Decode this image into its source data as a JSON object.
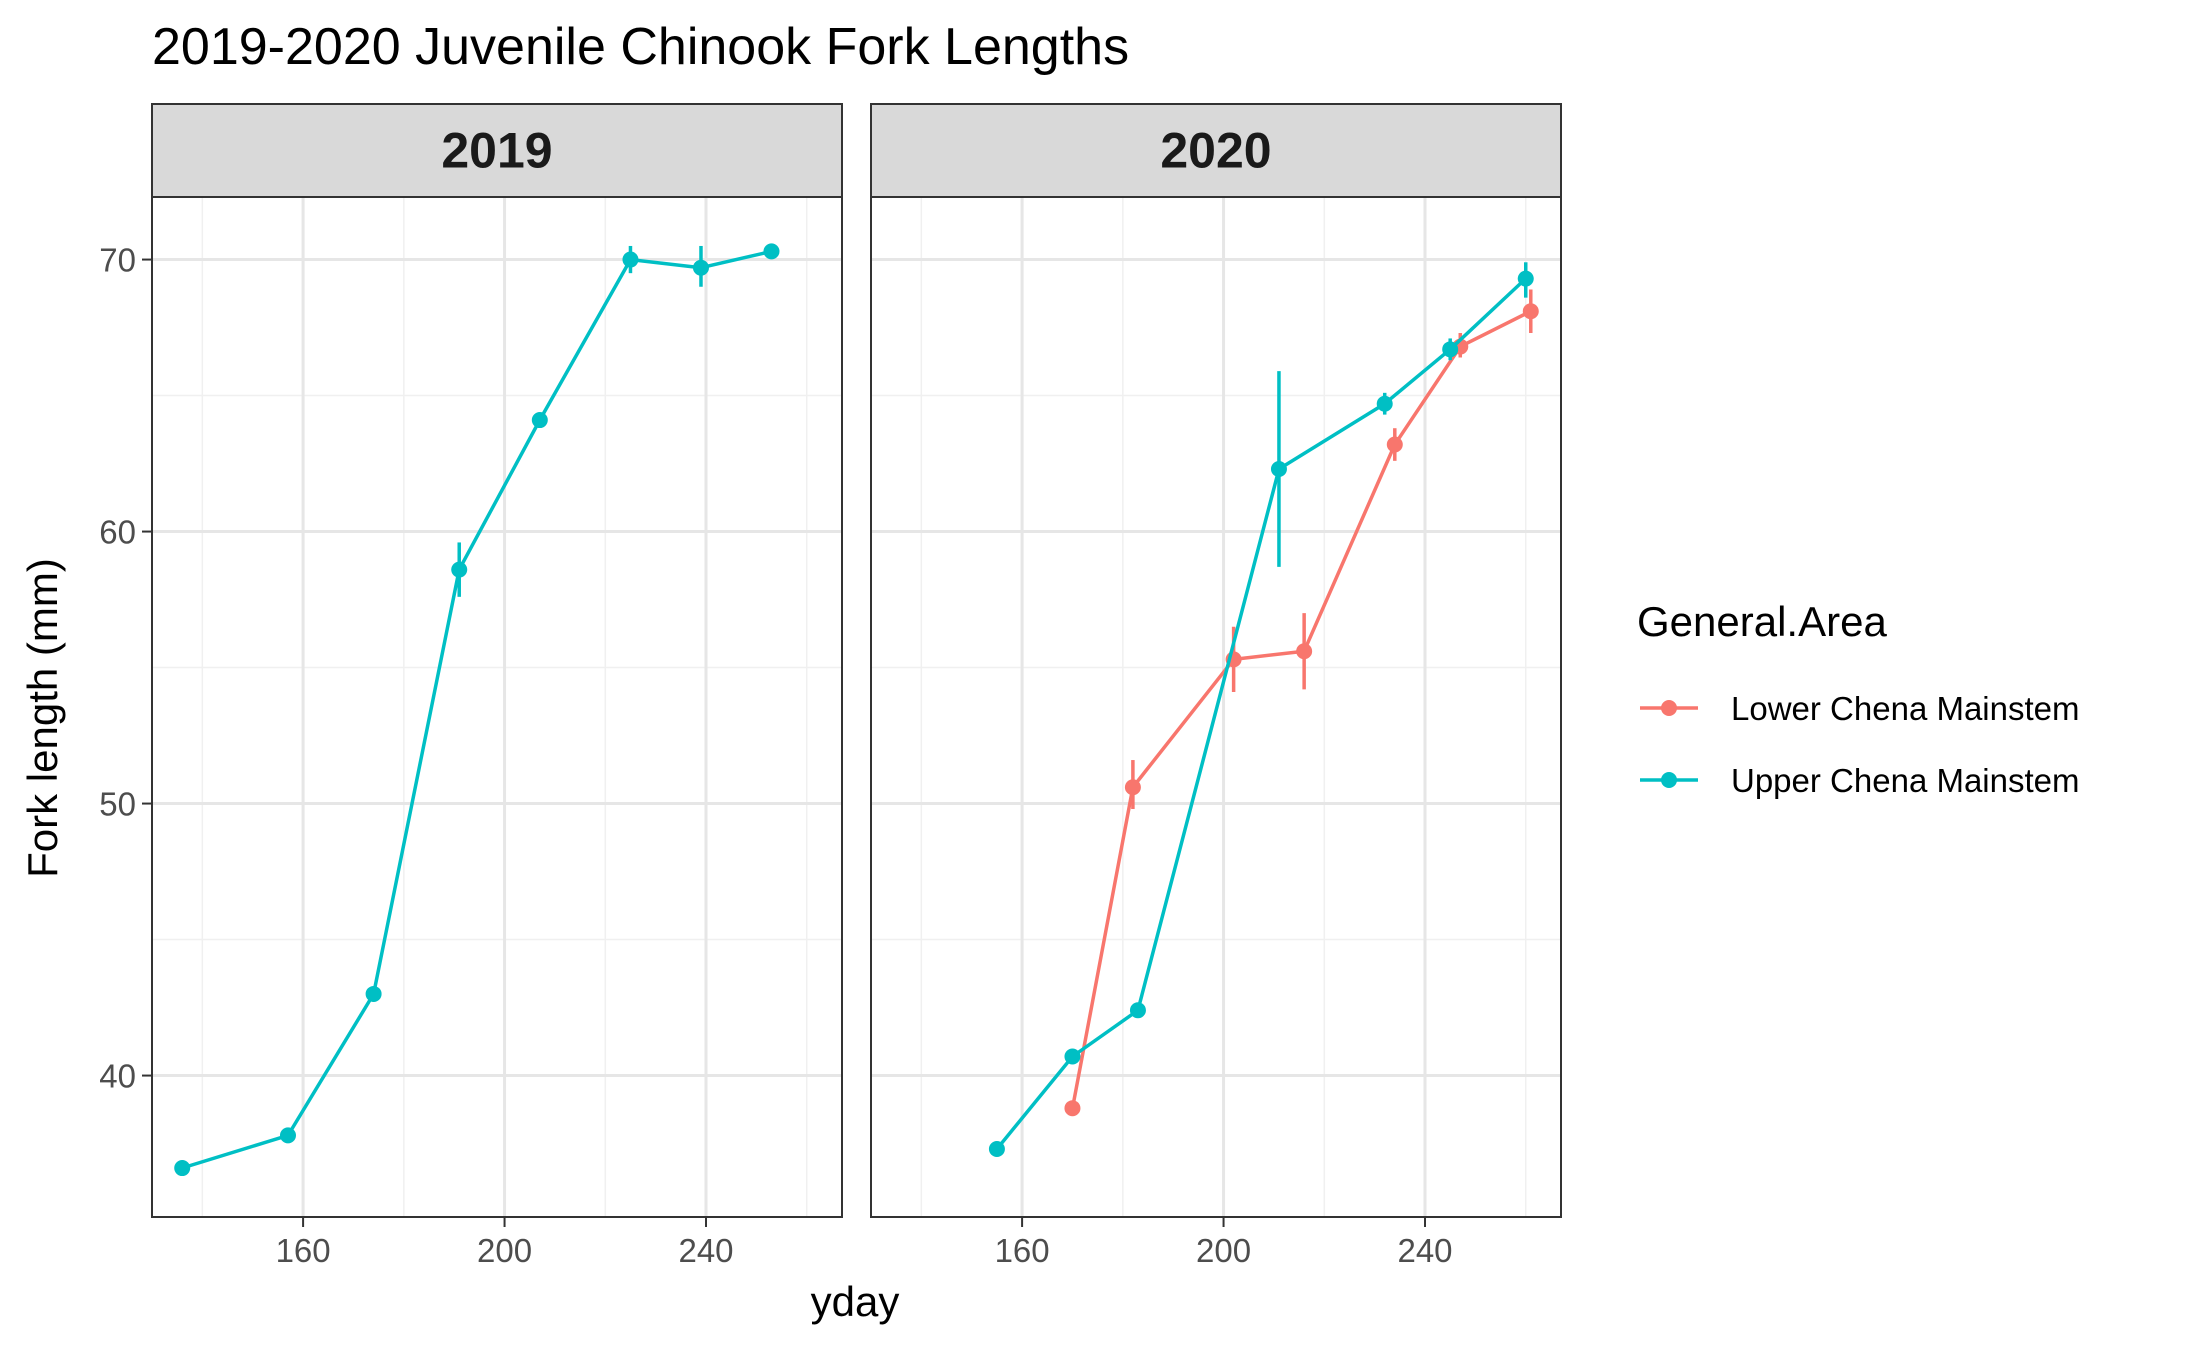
{
  "chart_data": {
    "type": "line",
    "title": "2019-2020 Juvenile Chinook Fork Lengths",
    "xlabel": "yday",
    "ylabel": "Fork length (mm)",
    "xlim": [
      130,
      267
    ],
    "ylim": [
      34.8,
      72.3
    ],
    "x_ticks": [
      160,
      200,
      240
    ],
    "x_minor_ticks": [
      140,
      180,
      220,
      260
    ],
    "y_ticks": [
      40,
      50,
      60,
      70
    ],
    "y_minor_ticks": [
      45,
      55,
      65
    ],
    "x_tick_labels": [
      "160",
      "200",
      "240"
    ],
    "y_tick_labels": [
      "40",
      "50",
      "60",
      "70"
    ],
    "grid": true,
    "legend": {
      "title": "General.Area",
      "placement": "right",
      "entries": [
        "Lower Chena Mainstem",
        "Upper Chena Mainstem"
      ]
    },
    "colors": {
      "Lower Chena Mainstem": "#F8766D",
      "Upper Chena Mainstem": "#00BFC4"
    },
    "panels": [
      {
        "label": "2019",
        "series": [
          {
            "name": "Upper Chena Mainstem",
            "points": [
              {
                "x": 136,
                "y": 36.6
              },
              {
                "x": 157,
                "y": 37.8
              },
              {
                "x": 174,
                "y": 43.0
              },
              {
                "x": 191,
                "y": 58.6,
                "ymin": 57.6,
                "ymax": 59.6
              },
              {
                "x": 207,
                "y": 64.1
              },
              {
                "x": 225,
                "y": 70.0,
                "ymin": 69.5,
                "ymax": 70.5
              },
              {
                "x": 239,
                "y": 69.7,
                "ymin": 69.0,
                "ymax": 70.5
              },
              {
                "x": 253,
                "y": 70.3
              }
            ]
          }
        ]
      },
      {
        "label": "2020",
        "series": [
          {
            "name": "Lower Chena Mainstem",
            "points": [
              {
                "x": 170,
                "y": 38.8
              },
              {
                "x": 182,
                "y": 50.6,
                "ymin": 49.8,
                "ymax": 51.6
              },
              {
                "x": 202,
                "y": 55.3,
                "ymin": 54.1,
                "ymax": 56.5
              },
              {
                "x": 216,
                "y": 55.6,
                "ymin": 54.2,
                "ymax": 57.0
              },
              {
                "x": 234,
                "y": 63.2,
                "ymin": 62.6,
                "ymax": 63.8
              },
              {
                "x": 247,
                "y": 66.8,
                "ymin": 66.4,
                "ymax": 67.3
              },
              {
                "x": 261,
                "y": 68.1,
                "ymin": 67.3,
                "ymax": 68.9
              }
            ]
          },
          {
            "name": "Upper Chena Mainstem",
            "points": [
              {
                "x": 155,
                "y": 37.3
              },
              {
                "x": 170,
                "y": 40.7
              },
              {
                "x": 183,
                "y": 42.4
              },
              {
                "x": 211,
                "y": 62.3,
                "ymin": 58.7,
                "ymax": 65.9
              },
              {
                "x": 232,
                "y": 64.7,
                "ymin": 64.3,
                "ymax": 65.1
              },
              {
                "x": 245,
                "y": 66.7,
                "ymin": 66.3,
                "ymax": 67.1
              },
              {
                "x": 260,
                "y": 69.3,
                "ymin": 68.6,
                "ymax": 69.9
              }
            ]
          }
        ]
      }
    ]
  }
}
